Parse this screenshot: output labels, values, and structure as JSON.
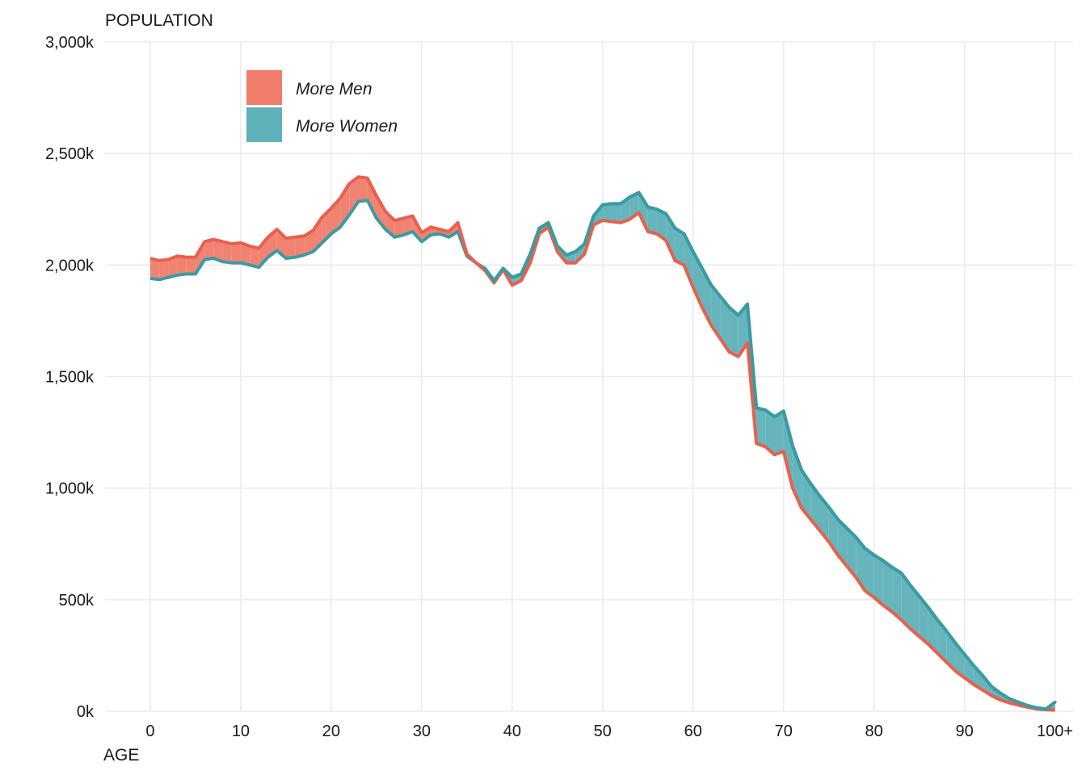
{
  "chart_data": {
    "type": "area",
    "title": "",
    "ylabel": "POPULATION",
    "xlabel": "AGE",
    "xlim": [
      -5,
      102
    ],
    "ylim": [
      0,
      3000
    ],
    "y_unit_note": "thousands",
    "x_ticks": [
      {
        "value": 0,
        "label": "0"
      },
      {
        "value": 10,
        "label": "10"
      },
      {
        "value": 20,
        "label": "20"
      },
      {
        "value": 30,
        "label": "30"
      },
      {
        "value": 40,
        "label": "40"
      },
      {
        "value": 50,
        "label": "50"
      },
      {
        "value": 60,
        "label": "60"
      },
      {
        "value": 70,
        "label": "70"
      },
      {
        "value": 80,
        "label": "80"
      },
      {
        "value": 90,
        "label": "90"
      },
      {
        "value": 100,
        "label": "100+"
      }
    ],
    "y_ticks": [
      {
        "value": 0,
        "label": "0k"
      },
      {
        "value": 500,
        "label": "500k"
      },
      {
        "value": 1000,
        "label": "1,000k"
      },
      {
        "value": 1500,
        "label": "1,500k"
      },
      {
        "value": 2000,
        "label": "2,000k"
      },
      {
        "value": 2500,
        "label": "2,500k"
      },
      {
        "value": 3000,
        "label": "3,000k"
      }
    ],
    "grid": true,
    "legend": {
      "position": "top-left",
      "entries": [
        {
          "label": "More Men",
          "color": "#F07C6C"
        },
        {
          "label": "More Women",
          "color": "#5EB1B8"
        }
      ]
    },
    "colors": {
      "men_fill": "#F07C6C",
      "men_line": "#E8604C",
      "women_fill": "#5EB1B8",
      "women_line": "#3A9BA3",
      "grid": "#EBEBEB"
    },
    "series": [
      {
        "name": "Men",
        "x": [
          0,
          1,
          2,
          3,
          4,
          5,
          6,
          7,
          8,
          9,
          10,
          11,
          12,
          13,
          14,
          15,
          16,
          17,
          18,
          19,
          20,
          21,
          22,
          23,
          24,
          25,
          26,
          27,
          28,
          29,
          30,
          31,
          32,
          33,
          34,
          35,
          36,
          37,
          38,
          39,
          40,
          41,
          42,
          43,
          44,
          45,
          46,
          47,
          48,
          49,
          50,
          51,
          52,
          53,
          54,
          55,
          56,
          57,
          58,
          59,
          60,
          61,
          62,
          63,
          64,
          65,
          66,
          67,
          68,
          69,
          70,
          71,
          72,
          73,
          74,
          75,
          76,
          77,
          78,
          79,
          80,
          81,
          82,
          83,
          84,
          85,
          86,
          87,
          88,
          89,
          90,
          91,
          92,
          93,
          94,
          95,
          96,
          97,
          98,
          99,
          100
        ],
        "values": [
          2030,
          2020,
          2025,
          2040,
          2035,
          2035,
          2105,
          2115,
          2105,
          2095,
          2100,
          2085,
          2075,
          2125,
          2160,
          2120,
          2125,
          2130,
          2155,
          2215,
          2255,
          2300,
          2365,
          2395,
          2390,
          2310,
          2240,
          2200,
          2210,
          2220,
          2145,
          2170,
          2160,
          2150,
          2190,
          2050,
          2010,
          1975,
          1920,
          1980,
          1910,
          1930,
          2010,
          2140,
          2170,
          2060,
          2010,
          2010,
          2050,
          2180,
          2200,
          2195,
          2190,
          2205,
          2235,
          2150,
          2140,
          2110,
          2020,
          2000,
          1900,
          1810,
          1730,
          1670,
          1610,
          1590,
          1650,
          1200,
          1185,
          1150,
          1165,
          1000,
          910,
          860,
          810,
          760,
          700,
          650,
          600,
          540,
          510,
          475,
          445,
          410,
          370,
          335,
          300,
          260,
          220,
          180,
          150,
          120,
          95,
          70,
          50,
          37,
          27,
          18,
          10,
          7,
          5
        ]
      },
      {
        "name": "Women",
        "x": [
          0,
          1,
          2,
          3,
          4,
          5,
          6,
          7,
          8,
          9,
          10,
          11,
          12,
          13,
          14,
          15,
          16,
          17,
          18,
          19,
          20,
          21,
          22,
          23,
          24,
          25,
          26,
          27,
          28,
          29,
          30,
          31,
          32,
          33,
          34,
          35,
          36,
          37,
          38,
          39,
          40,
          41,
          42,
          43,
          44,
          45,
          46,
          47,
          48,
          49,
          50,
          51,
          52,
          53,
          54,
          55,
          56,
          57,
          58,
          59,
          60,
          61,
          62,
          63,
          64,
          65,
          66,
          67,
          68,
          69,
          70,
          71,
          72,
          73,
          74,
          75,
          76,
          77,
          78,
          79,
          80,
          81,
          82,
          83,
          84,
          85,
          86,
          87,
          88,
          89,
          90,
          91,
          92,
          93,
          94,
          95,
          96,
          97,
          98,
          99,
          100
        ],
        "values": [
          1940,
          1935,
          1945,
          1955,
          1960,
          1960,
          2025,
          2030,
          2015,
          2010,
          2010,
          2000,
          1990,
          2035,
          2065,
          2030,
          2035,
          2045,
          2060,
          2100,
          2140,
          2170,
          2225,
          2285,
          2290,
          2210,
          2160,
          2125,
          2135,
          2150,
          2105,
          2135,
          2140,
          2125,
          2150,
          2040,
          2010,
          1985,
          1930,
          1985,
          1945,
          1960,
          2050,
          2165,
          2190,
          2085,
          2045,
          2060,
          2095,
          2220,
          2270,
          2275,
          2275,
          2305,
          2325,
          2260,
          2250,
          2230,
          2165,
          2140,
          2060,
          1985,
          1910,
          1860,
          1810,
          1775,
          1825,
          1360,
          1350,
          1320,
          1345,
          1190,
          1080,
          1020,
          965,
          915,
          860,
          820,
          780,
          730,
          700,
          675,
          645,
          620,
          565,
          515,
          465,
          410,
          360,
          305,
          255,
          205,
          160,
          110,
          80,
          55,
          40,
          25,
          15,
          10,
          40
        ]
      }
    ]
  }
}
